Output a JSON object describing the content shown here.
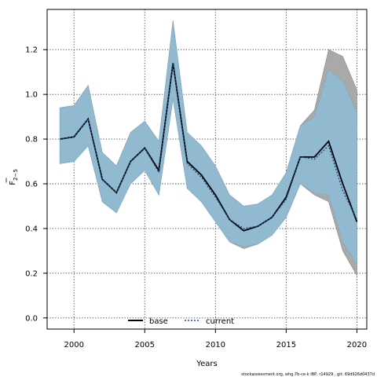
{
  "chart_data": {
    "type": "line",
    "title": "",
    "xlabel": "Years",
    "ylabel_main": "F",
    "ylabel_sub": "2−5",
    "xlim": [
      1998.1,
      2020.7
    ],
    "ylim": [
      -0.05,
      1.38
    ],
    "x_ticks": [
      2000,
      2005,
      2010,
      2015,
      2020
    ],
    "y_ticks": [
      0.0,
      0.2,
      0.4,
      0.6,
      0.8,
      1.0,
      1.2
    ],
    "y_tick_labels": [
      "0.0",
      "0.2",
      "0.4",
      "0.6",
      "0.8",
      "1.0",
      "1.2"
    ],
    "grid": true,
    "legend_position": "bottom-center",
    "x": [
      1999,
      2000,
      2001,
      2002,
      2003,
      2004,
      2005,
      2006,
      2007,
      2008,
      2009,
      2010,
      2011,
      2012,
      2013,
      2014,
      2015,
      2016,
      2017,
      2018,
      2019,
      2020
    ],
    "series": [
      {
        "name": "base",
        "line_color": "#000000",
        "band_color": "#a9a9a9",
        "values": [
          0.8,
          0.81,
          0.89,
          0.62,
          0.56,
          0.7,
          0.76,
          0.66,
          1.14,
          0.7,
          0.64,
          0.55,
          0.44,
          0.39,
          0.41,
          0.45,
          0.54,
          0.72,
          0.72,
          0.79,
          0.6,
          0.43
        ],
        "lower": [
          0.69,
          0.7,
          0.77,
          0.52,
          0.47,
          0.6,
          0.66,
          0.55,
          0.98,
          0.58,
          0.52,
          0.43,
          0.34,
          0.31,
          0.33,
          0.37,
          0.45,
          0.6,
          0.55,
          0.52,
          0.3,
          0.19
        ],
        "upper": [
          0.94,
          0.95,
          1.04,
          0.74,
          0.68,
          0.83,
          0.88,
          0.79,
          1.33,
          0.83,
          0.77,
          0.68,
          0.55,
          0.5,
          0.51,
          0.55,
          0.65,
          0.86,
          0.93,
          1.2,
          1.17,
          1.02
        ]
      },
      {
        "name": "current",
        "line_color": "#1f4e8c",
        "band_color": "#8fbcd4",
        "values": [
          0.8,
          0.81,
          0.89,
          0.62,
          0.56,
          0.7,
          0.76,
          0.65,
          1.14,
          0.69,
          0.63,
          0.54,
          0.44,
          0.4,
          0.41,
          0.45,
          0.53,
          0.72,
          0.71,
          0.77,
          0.57,
          0.44
        ],
        "lower": [
          0.69,
          0.7,
          0.77,
          0.52,
          0.47,
          0.6,
          0.66,
          0.55,
          0.98,
          0.58,
          0.52,
          0.43,
          0.34,
          0.32,
          0.33,
          0.37,
          0.45,
          0.6,
          0.56,
          0.55,
          0.34,
          0.24
        ],
        "upper": [
          0.94,
          0.95,
          1.04,
          0.74,
          0.68,
          0.83,
          0.88,
          0.79,
          1.33,
          0.83,
          0.77,
          0.68,
          0.55,
          0.5,
          0.51,
          0.55,
          0.65,
          0.86,
          0.9,
          1.11,
          1.06,
          0.92
        ]
      }
    ],
    "footer": "stockassessment.org, whg.7b-ce-k IBP, r14929 , git: 69d926d0437d"
  }
}
